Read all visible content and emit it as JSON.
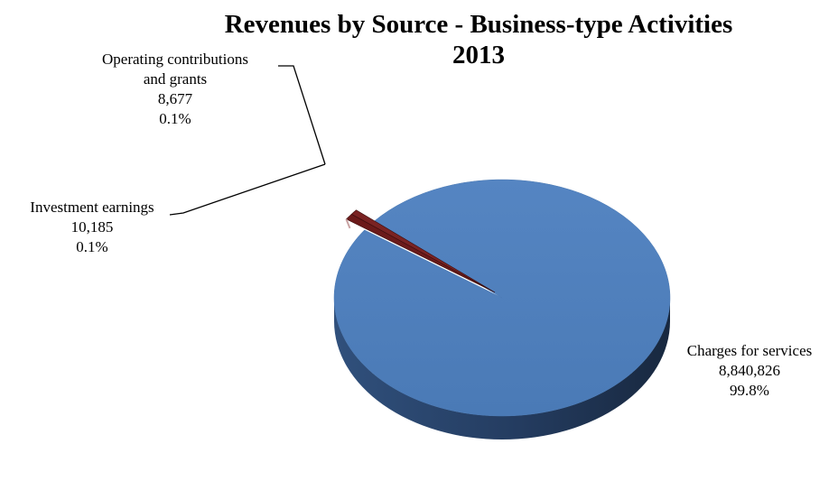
{
  "chart_data": {
    "type": "pie",
    "title": "Revenues by Source - Business-type Activities",
    "subtitle": "2013",
    "slices": [
      {
        "label": "Charges for services",
        "value_text": "8,840,826",
        "percent_text": "99.8%",
        "value": 8840826,
        "color": "#4f81bd"
      },
      {
        "label": "Investment earnings",
        "value_text": "10,185",
        "percent_text": "0.1%",
        "value": 10185,
        "color": "#6b1a1a"
      },
      {
        "label_line1": "Operating contributions",
        "label_line2": "and grants",
        "value_text": "8,677",
        "percent_text": "0.1%",
        "value": 8677,
        "color": "#7a2323"
      }
    ]
  }
}
